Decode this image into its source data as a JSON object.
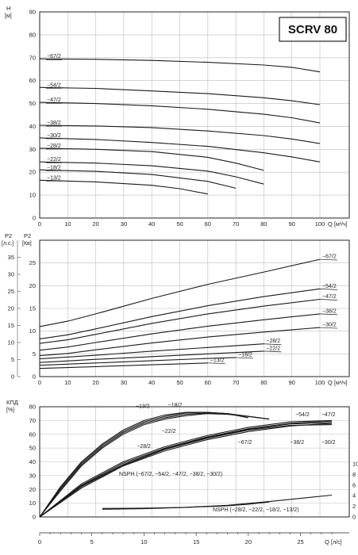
{
  "chart_data": [
    {
      "type": "line",
      "title": "SCRV 80",
      "ylabel": "H",
      "yunit": "[м]",
      "xlabel": "Q",
      "xunit": "[м³/ч]",
      "xlim": [
        0,
        100
      ],
      "ylim": [
        0,
        90
      ],
      "xticks": [
        0,
        10,
        20,
        30,
        40,
        50,
        60,
        70,
        80,
        90,
        100
      ],
      "yticks": [
        0,
        10,
        20,
        30,
        40,
        50,
        60,
        70,
        80,
        90
      ],
      "grid": true,
      "series": [
        {
          "name": "−67/2",
          "x": [
            0,
            20,
            40,
            60,
            80,
            90,
            100
          ],
          "y": [
            69.5,
            69.3,
            68.8,
            68.0,
            66.8,
            65.8,
            63.8
          ]
        },
        {
          "name": "−54/2",
          "x": [
            0,
            20,
            40,
            60,
            80,
            90,
            100
          ],
          "y": [
            57.0,
            56.6,
            55.5,
            54.3,
            52.5,
            51.2,
            49.5
          ]
        },
        {
          "name": "−47/2",
          "x": [
            0,
            20,
            40,
            60,
            80,
            90,
            100
          ],
          "y": [
            50.5,
            50.0,
            49.0,
            47.5,
            45.3,
            43.8,
            41.5
          ]
        },
        {
          "name": "−38/2",
          "x": [
            0,
            20,
            40,
            60,
            80,
            90,
            100
          ],
          "y": [
            40.5,
            40.2,
            39.5,
            38.0,
            36.0,
            34.5,
            32.5
          ]
        },
        {
          "name": "−30/2",
          "x": [
            0,
            20,
            40,
            60,
            80,
            90,
            100
          ],
          "y": [
            35.0,
            34.3,
            33.0,
            31.3,
            28.5,
            26.7,
            24.5
          ]
        },
        {
          "name": "−28/2",
          "x": [
            0,
            20,
            40,
            60,
            70,
            80
          ],
          "y": [
            30.5,
            30.0,
            29.0,
            26.5,
            24.0,
            20.8
          ]
        },
        {
          "name": "−22/2",
          "x": [
            0,
            20,
            40,
            60,
            70,
            80
          ],
          "y": [
            24.5,
            24.0,
            22.8,
            20.5,
            18.0,
            14.8
          ]
        },
        {
          "name": "−18/2",
          "x": [
            0,
            20,
            40,
            60,
            70
          ],
          "y": [
            21.0,
            20.4,
            19.0,
            16.0,
            13.0
          ]
        },
        {
          "name": "−13/2",
          "x": [
            0,
            20,
            40,
            50,
            60
          ],
          "y": [
            16.5,
            15.8,
            14.3,
            12.8,
            10.5
          ]
        }
      ]
    },
    {
      "type": "line",
      "ylabel": "P2",
      "yunit": "[Кв]",
      "ylabel2": "P2",
      "yunit2": "[л.с.]",
      "xlabel": "Q",
      "xunit": "[м³/ч]",
      "xlim": [
        0,
        100
      ],
      "ylim": [
        0,
        30
      ],
      "xticks": [
        0,
        10,
        20,
        30,
        40,
        50,
        60,
        70,
        80,
        90,
        100
      ],
      "yticks": [
        0,
        5,
        10,
        15,
        20,
        25
      ],
      "yticks2": [
        0,
        5,
        10,
        15,
        20,
        25,
        30,
        35
      ],
      "grid": true,
      "series": [
        {
          "name": "−67/2",
          "x": [
            0,
            10,
            20,
            40,
            60,
            80,
            100
          ],
          "y": [
            11.0,
            12.2,
            13.8,
            17.2,
            20.3,
            23.0,
            25.8
          ]
        },
        {
          "name": "−54/2",
          "x": [
            0,
            10,
            20,
            40,
            60,
            80,
            100
          ],
          "y": [
            8.3,
            9.2,
            10.5,
            13.2,
            15.6,
            17.6,
            19.3
          ]
        },
        {
          "name": "−47/2",
          "x": [
            0,
            10,
            20,
            40,
            60,
            80,
            100
          ],
          "y": [
            7.3,
            8.1,
            9.3,
            11.7,
            13.8,
            15.5,
            17.0
          ]
        },
        {
          "name": "−38/2",
          "x": [
            0,
            10,
            20,
            40,
            60,
            80,
            100
          ],
          "y": [
            5.8,
            6.5,
            7.5,
            9.4,
            11.1,
            12.5,
            13.8
          ]
        },
        {
          "name": "−30/2",
          "x": [
            0,
            10,
            20,
            40,
            60,
            80,
            100
          ],
          "y": [
            4.6,
            5.1,
            5.9,
            7.4,
            8.7,
            9.8,
            10.8
          ]
        },
        {
          "name": "−28/2",
          "x": [
            0,
            20,
            40,
            60,
            80
          ],
          "y": [
            3.9,
            4.7,
            5.6,
            6.4,
            7.2
          ]
        },
        {
          "name": "−22/2",
          "x": [
            0,
            20,
            40,
            60,
            80
          ],
          "y": [
            3.1,
            3.8,
            4.4,
            5.0,
            5.6
          ]
        },
        {
          "name": "−18/2",
          "x": [
            0,
            20,
            40,
            60,
            70
          ],
          "y": [
            2.5,
            3.0,
            3.5,
            4.0,
            4.2
          ]
        },
        {
          "name": "−13/2",
          "x": [
            0,
            20,
            40,
            60
          ],
          "y": [
            1.8,
            2.2,
            2.6,
            3.0
          ]
        }
      ]
    },
    {
      "type": "line",
      "ylabel": "КПД",
      "yunit": "[%]",
      "xlabel": "Q",
      "xunit": "[л/с]",
      "xlim": [
        0,
        28
      ],
      "ylim": [
        0,
        80
      ],
      "xticks": [
        0,
        5,
        10,
        15,
        20,
        25
      ],
      "yticks": [
        0,
        10,
        20,
        30,
        40,
        50,
        60,
        70,
        80
      ],
      "y2lim": [
        0,
        10
      ],
      "y2ticks": [
        0,
        2,
        4,
        6,
        8,
        10
      ],
      "grid": true,
      "series": [
        {
          "name": "−13/2",
          "axis": "efficiency",
          "x": [
            0,
            2,
            4,
            6,
            8,
            10,
            12,
            14,
            16,
            18,
            20
          ],
          "y": [
            0,
            22,
            40,
            53,
            63,
            70,
            74,
            76,
            76,
            75,
            72
          ]
        },
        {
          "name": "−18/2",
          "axis": "efficiency",
          "x": [
            0,
            2,
            4,
            6,
            8,
            10,
            12,
            14,
            16,
            18,
            20,
            22
          ],
          "y": [
            0,
            21,
            39,
            52,
            62,
            69,
            73,
            75.5,
            76,
            75,
            73,
            71
          ]
        },
        {
          "name": "−22/2",
          "axis": "efficiency",
          "x": [
            0,
            2,
            4,
            6,
            8,
            10,
            12,
            14,
            16,
            18,
            20,
            22
          ],
          "y": [
            0,
            20,
            38,
            51,
            61,
            68,
            72,
            74.5,
            75.5,
            75,
            73,
            71
          ]
        },
        {
          "name": "−28/2",
          "axis": "efficiency",
          "x": [
            0,
            2,
            4,
            6,
            8,
            10,
            12,
            14,
            16,
            18,
            20,
            22
          ],
          "y": [
            0,
            19,
            37,
            50,
            60,
            67,
            71,
            73.5,
            75,
            74.5,
            73,
            71
          ]
        },
        {
          "name": "−54/2",
          "axis": "efficiency",
          "x": [
            0,
            4,
            8,
            12,
            16,
            20,
            24,
            28
          ],
          "y": [
            0,
            24,
            40,
            51,
            59,
            65,
            69,
            70
          ]
        },
        {
          "name": "−47/2",
          "axis": "efficiency",
          "x": [
            0,
            4,
            8,
            12,
            16,
            20,
            24,
            28
          ],
          "y": [
            0,
            23,
            39,
            50,
            58,
            64,
            68,
            69.5
          ]
        },
        {
          "name": "−38/2",
          "axis": "efficiency",
          "x": [
            0,
            4,
            8,
            12,
            16,
            20,
            24,
            28
          ],
          "y": [
            0,
            22.5,
            38,
            49.5,
            57.5,
            63.5,
            67.5,
            68.5
          ]
        },
        {
          "name": "−30/2",
          "axis": "efficiency",
          "x": [
            0,
            4,
            8,
            12,
            16,
            20,
            24,
            28
          ],
          "y": [
            0,
            22,
            37.5,
            49,
            57,
            63,
            66.5,
            67
          ]
        },
        {
          "name": "−67/2",
          "axis": "efficiency",
          "x": [
            0,
            4,
            8,
            12,
            16,
            20,
            24,
            28
          ],
          "y": [
            0,
            21,
            37,
            48,
            56,
            62,
            66,
            68
          ]
        },
        {
          "name": "NSPH (−67/2, −54/2, −47/2, −38/2, −30/2)",
          "axis": "npsh",
          "x": [
            6,
            10,
            14,
            18,
            22,
            26,
            28
          ],
          "y": [
            1.45,
            1.55,
            1.8,
            2.2,
            2.9,
            3.7,
            4.1
          ]
        },
        {
          "name": "NSPH (−28/2, −22/2, −18/2, −13/2)",
          "axis": "npsh",
          "x": [
            6,
            10,
            14,
            18,
            20,
            22
          ],
          "y": [
            1.6,
            1.65,
            1.8,
            2.1,
            2.4,
            2.8
          ]
        }
      ]
    }
  ]
}
